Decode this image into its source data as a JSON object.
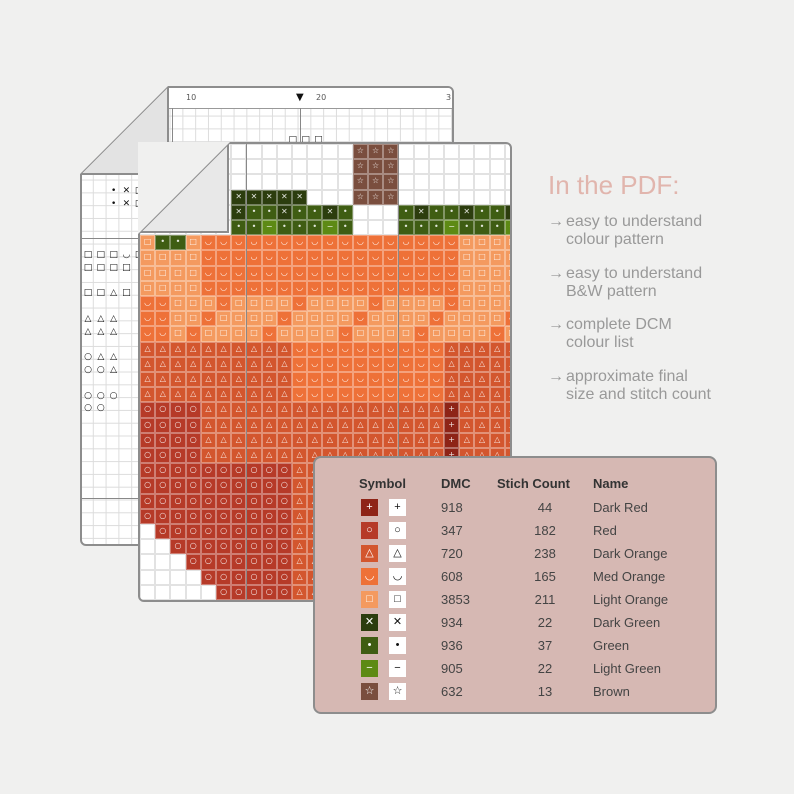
{
  "title": "In the PDF:",
  "bullets": [
    {
      "arrow": "→",
      "line1": "easy to understand",
      "line2": "colour pattern"
    },
    {
      "arrow": "→",
      "line1": "easy to understand",
      "line2": "B&W pattern"
    },
    {
      "arrow": "→",
      "line1": "complete DCM",
      "line2": "colour list"
    },
    {
      "arrow": "→",
      "line1": "approximate final",
      "line2": "size and stitch count"
    }
  ],
  "ruler": {
    "left": "10",
    "mid": "20",
    "right": "3",
    "marker": "▼"
  },
  "legend": {
    "headers": {
      "symbol": "Symbol",
      "dmc": "DMC",
      "count": "Stich Count",
      "name": "Name"
    },
    "rows": [
      {
        "sym": "+",
        "dmc": "918",
        "count": "44",
        "name": "Dark Red",
        "color": "#8e2417"
      },
      {
        "sym": "○",
        "dmc": "347",
        "count": "182",
        "name": "Red",
        "color": "#b63a28"
      },
      {
        "sym": "△",
        "dmc": "720",
        "count": "238",
        "name": "Dark Orange",
        "color": "#d3562e"
      },
      {
        "sym": "◡",
        "dmc": "608",
        "count": "165",
        "name": "Med Orange",
        "color": "#ee7138"
      },
      {
        "sym": "□",
        "dmc": "3853",
        "count": "211",
        "name": "Light Orange",
        "color": "#f49a5f"
      },
      {
        "sym": "✕",
        "dmc": "934",
        "count": "22",
        "name": "Dark Green",
        "color": "#2c3d0e"
      },
      {
        "sym": "•",
        "dmc": "936",
        "count": "37",
        "name": "Green",
        "color": "#3f5d13"
      },
      {
        "sym": "−",
        "dmc": "905",
        "count": "22",
        "name": "Light Green",
        "color": "#5d8a14"
      },
      {
        "sym": "☆",
        "dmc": "632",
        "count": "13",
        "name": "Brown",
        "color": "#7a4e3e"
      }
    ]
  }
}
